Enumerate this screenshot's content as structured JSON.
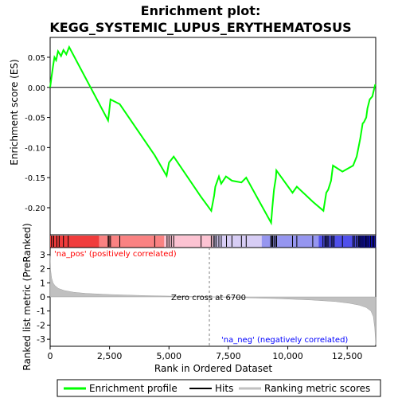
{
  "chart_data": {
    "type": "line",
    "title": "Enrichment plot: KEGG_SYSTEMIC_LUPUS_ERYTHEMATOSUS",
    "top_panel": {
      "ylabel": "Enrichment score (ES)",
      "ylim": [
        -0.245,
        0.083
      ],
      "yticks": [
        0.05,
        0.0,
        -0.05,
        -0.1,
        -0.15,
        -0.2
      ],
      "ytick_labels": [
        "0.05",
        "0.00",
        "-0.05",
        "-0.10",
        "-0.15",
        "-0.20"
      ],
      "series": [
        {
          "x": [
            0,
            50,
            120,
            180,
            250,
            330,
            460,
            560,
            680,
            800,
            2440,
            2480,
            2540,
            2930,
            4400,
            4900,
            5000,
            5100,
            5200,
            6350,
            6780,
            6900,
            6950,
            7100,
            7200,
            7400,
            7650,
            8050,
            8250,
            9300,
            9350,
            9420,
            9500,
            9520,
            10200,
            10380,
            11050,
            11500,
            11600,
            11620,
            11700,
            11820,
            11900,
            12300,
            12750,
            12800,
            12900,
            13000,
            13050,
            13150,
            13200,
            13300,
            13350,
            13450,
            13560,
            13620,
            13680
          ],
          "y": [
            0.0,
            0.015,
            0.035,
            0.05,
            0.045,
            0.06,
            0.052,
            0.062,
            0.055,
            0.067,
            -0.055,
            -0.042,
            -0.02,
            -0.028,
            -0.113,
            -0.147,
            -0.125,
            -0.12,
            -0.115,
            -0.182,
            -0.205,
            -0.18,
            -0.165,
            -0.148,
            -0.16,
            -0.148,
            -0.155,
            -0.158,
            -0.15,
            -0.225,
            -0.2,
            -0.17,
            -0.15,
            -0.138,
            -0.175,
            -0.165,
            -0.19,
            -0.205,
            -0.18,
            -0.175,
            -0.17,
            -0.155,
            -0.13,
            -0.14,
            -0.13,
            -0.125,
            -0.115,
            -0.095,
            -0.085,
            -0.06,
            -0.058,
            -0.05,
            -0.035,
            -0.02,
            -0.015,
            -0.005,
            0.005
          ]
        }
      ]
    },
    "hits": [
      60,
      150,
      280,
      380,
      560,
      760,
      2440,
      2480,
      2540,
      2930,
      4400,
      4920,
      5000,
      5100,
      5200,
      6350,
      6780,
      6870,
      6930,
      7000,
      7100,
      7200,
      7420,
      7650,
      8050,
      8250,
      9280,
      9330,
      9360,
      9420,
      9480,
      9530,
      10200,
      10380,
      11050,
      11480,
      11560,
      11610,
      11660,
      11720,
      11830,
      11890,
      11950,
      12300,
      12740,
      12800,
      12880,
      12960,
      13000,
      13060,
      13130,
      13200,
      13280,
      13330,
      13400,
      13480,
      13560,
      13620,
      13680
    ],
    "bottom_panel": {
      "ylabel": "Ranked list metric (PreRanked)",
      "xlabel": "Rank in Ordered Dataset",
      "ylim": [
        -3.5,
        3.5
      ],
      "yticks": [
        3,
        2,
        1,
        0,
        -1,
        -2,
        -3
      ],
      "ytick_labels": [
        "3",
        "2",
        "1",
        "0",
        "-1",
        "-2",
        "-3"
      ],
      "xlim": [
        0,
        13700
      ],
      "xticks": [
        0,
        2500,
        5000,
        7500,
        10000,
        12500
      ],
      "xtick_labels": [
        "0",
        "2,500",
        "5,000",
        "7,500",
        "10,000",
        "12,500"
      ],
      "metric_curve": {
        "x": [
          0,
          20,
          60,
          120,
          200,
          350,
          600,
          1000,
          1500,
          2500,
          4000,
          5500,
          6700,
          8000,
          9500,
          11000,
          12000,
          12600,
          13000,
          13300,
          13500,
          13600,
          13660,
          13700
        ],
        "y": [
          2.9,
          1.9,
          1.35,
          1.0,
          0.8,
          0.6,
          0.45,
          0.33,
          0.25,
          0.17,
          0.09,
          0.04,
          0.0,
          -0.05,
          -0.12,
          -0.22,
          -0.33,
          -0.45,
          -0.58,
          -0.75,
          -1.0,
          -1.4,
          -2.2,
          -3.4
        ]
      },
      "zero_cross_rank": 6700,
      "annotations": {
        "zero_cross": "Zero cross at 6700",
        "pos_label": "'na_pos' (positively correlated)",
        "neg_label": "'na_neg' (negatively correlated)"
      }
    },
    "legend": {
      "placement": "bottom",
      "entries": [
        {
          "label": "Enrichment profile",
          "color": "#00ff00"
        },
        {
          "label": "Hits",
          "color": "#000000"
        },
        {
          "label": "Ranking metric scores",
          "color": "#c0c0c0"
        }
      ]
    },
    "colors": {
      "profile": "#00ff00",
      "metric_fill": "#c0c0c0",
      "pos_label": "#ff0000",
      "neg_label": "#0000ff",
      "zero_line": "#808080"
    }
  }
}
